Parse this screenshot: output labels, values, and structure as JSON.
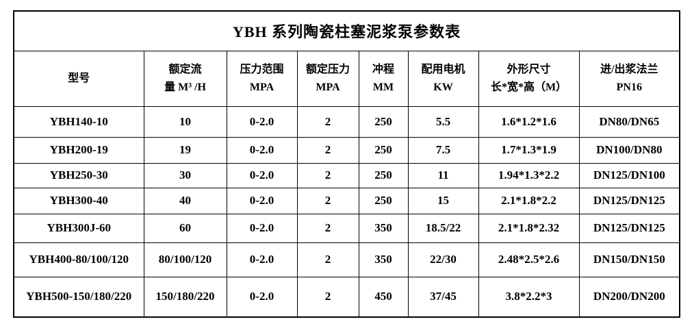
{
  "title": "YBH 系列陶瓷柱塞泥浆泵参数表",
  "colors": {
    "border": "#000000",
    "text": "#000000",
    "background": "#ffffff"
  },
  "table": {
    "columns": [
      {
        "name": "model",
        "line1": "型号",
        "line2": ""
      },
      {
        "name": "rated-flow",
        "line1": "额定流",
        "line2": "量 M³ /H"
      },
      {
        "name": "pressure-range",
        "line1": "压力范围",
        "line2": "MPA"
      },
      {
        "name": "rated-pressure",
        "line1": "额定压力",
        "line2": "MPA"
      },
      {
        "name": "stroke",
        "line1": "冲程",
        "line2": "MM"
      },
      {
        "name": "motor-power",
        "line1": "配用电机",
        "line2": "KW"
      },
      {
        "name": "dimensions",
        "line1": "外形尺寸",
        "line2": "长*宽*高（M）"
      },
      {
        "name": "flange",
        "line1": "进/出浆法兰",
        "line2": "PN16"
      }
    ],
    "rows": [
      [
        "YBH140-10",
        "10",
        "0-2.0",
        "2",
        "250",
        "5.5",
        "1.6*1.2*1.6",
        "DN80/DN65"
      ],
      [
        "YBH200-19",
        "19",
        "0-2.0",
        "2",
        "250",
        "7.5",
        "1.7*1.3*1.9",
        "DN100/DN80"
      ],
      [
        "YBH250-30",
        "30",
        "0-2.0",
        "2",
        "250",
        "11",
        "1.94*1.3*2.2",
        "DN125/DN100"
      ],
      [
        "YBH300-40",
        "40",
        "0-2.0",
        "2",
        "250",
        "15",
        "2.1*1.8*2.2",
        "DN125/DN125"
      ],
      [
        "YBH300J-60",
        "60",
        "0-2.0",
        "2",
        "350",
        "18.5/22",
        "2.1*1.8*2.32",
        "DN125/DN125"
      ],
      [
        "YBH400-80/100/120",
        "80/100/120",
        "0-2.0",
        "2",
        "350",
        "22/30",
        "2.48*2.5*2.6",
        "DN150/DN150"
      ],
      [
        "YBH500-150/180/220",
        "150/180/220",
        "0-2.0",
        "2",
        "450",
        "37/45",
        "3.8*2.2*3",
        "DN200/DN200"
      ]
    ]
  }
}
